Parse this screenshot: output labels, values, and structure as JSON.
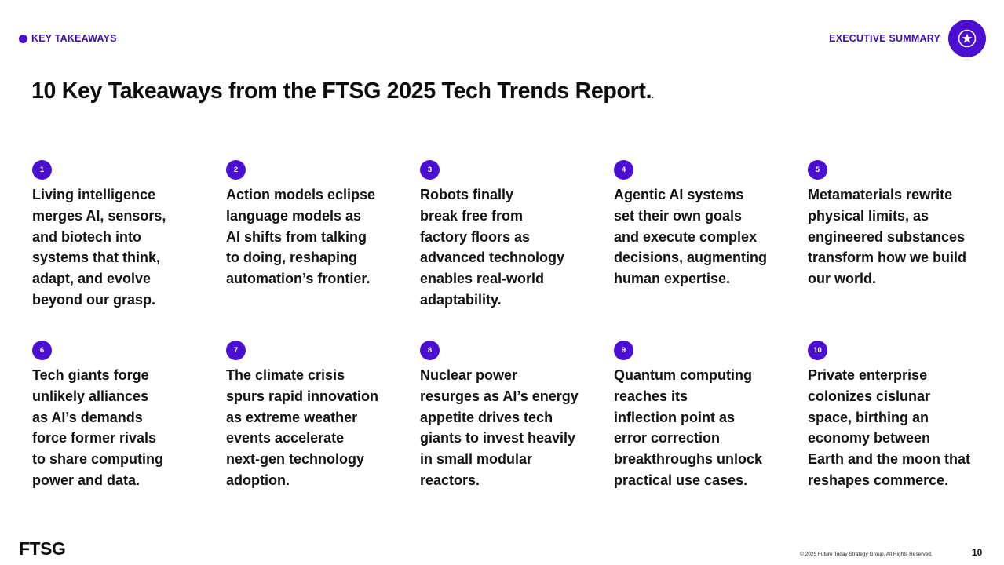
{
  "header": {
    "section_label": "KEY TAKEAWAYS",
    "right_label": "EXECUTIVE SUMMARY",
    "badge_icon": "star-icon"
  },
  "title": "10 Key Takeaways from the FTSG 2025 Tech Trends Report.",
  "title_trailing": ".",
  "takeaways": [
    {
      "number": "1",
      "lines": [
        "Living intelligence",
        "merges AI, sensors,",
        "and biotech into",
        "systems that think,",
        "adapt, and evolve",
        "beyond our grasp."
      ]
    },
    {
      "number": "2",
      "lines": [
        "Action models eclipse",
        "language models as",
        "AI shifts from talking",
        "to doing, reshaping",
        "automation’s frontier."
      ]
    },
    {
      "number": "3",
      "lines": [
        "Robots finally",
        "break free from",
        "factory floors as",
        "advanced technology",
        "enables real-world",
        "adaptability."
      ]
    },
    {
      "number": "4",
      "lines": [
        "Agentic AI systems",
        "set their own goals",
        "and execute complex",
        "decisions, augmenting",
        "human expertise."
      ]
    },
    {
      "number": "5",
      "lines": [
        "Metamaterials rewrite",
        "physical limits, as",
        "engineered substances",
        "transform how we build",
        "our world."
      ]
    },
    {
      "number": "6",
      "lines": [
        "Tech giants forge",
        "unlikely alliances",
        "as AI’s demands",
        "force former rivals",
        "to share computing",
        "power and data."
      ]
    },
    {
      "number": "7",
      "lines": [
        "The climate crisis",
        "spurs rapid innovation",
        "as extreme weather",
        "events accelerate",
        "next-gen technology",
        "adoption."
      ]
    },
    {
      "number": "8",
      "lines": [
        "Nuclear power",
        "resurges as AI’s energy",
        "appetite drives tech",
        "giants to invest heavily",
        "in small modular",
        "reactors."
      ]
    },
    {
      "number": "9",
      "lines": [
        "Quantum computing",
        "reaches its",
        "inflection point as",
        "error correction",
        "breakthroughs unlock",
        "practical use cases."
      ]
    },
    {
      "number": "10",
      "lines": [
        "Private enterprise",
        "colonizes cislunar",
        "space, birthing an",
        "economy between",
        "Earth and the moon that",
        "reshapes commerce."
      ]
    }
  ],
  "footer": {
    "logo": "FTSG",
    "copyright": "© 2025 Future Today Strategy Group. All Rights Reserved.",
    "page_number": "10"
  },
  "colors": {
    "accent": "#4b0fd4",
    "label": "#3a0ea8",
    "text": "#111111"
  }
}
